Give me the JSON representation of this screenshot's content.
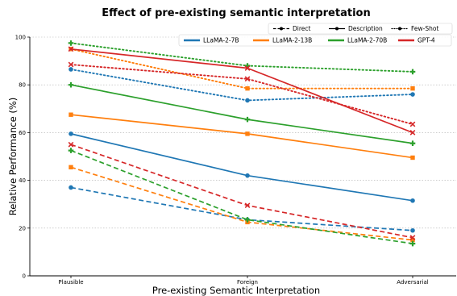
{
  "chart_data": {
    "type": "line",
    "title": "Effect of pre-existing semantic interpretation",
    "xlabel": "Pre-existing Semantic Interpretation",
    "ylabel": "Relative Performance (%)",
    "categories": [
      "Plausible",
      "Foreign",
      "Adversarial"
    ],
    "ylim": [
      0,
      100
    ],
    "yticks": [
      0,
      20,
      40,
      60,
      80,
      100
    ],
    "grid": "horizontal-dotted",
    "legend_style_placement": "top-right",
    "legend_model_placement": "top-right",
    "styles": [
      {
        "key": "direct",
        "label": "Direct",
        "dash": "dashed"
      },
      {
        "key": "description",
        "label": "Description",
        "dash": "solid"
      },
      {
        "key": "fewshot",
        "label": "Few-Shot",
        "dash": "dotted"
      }
    ],
    "models": [
      {
        "key": "llama7",
        "label": "LLaMA-2-7B",
        "color": "#1f77b4",
        "marker": "circle"
      },
      {
        "key": "llama13",
        "label": "LLaMA-2-13B",
        "color": "#ff7f0e",
        "marker": "square"
      },
      {
        "key": "llama70",
        "label": "LLaMA-2-70B",
        "color": "#2ca02c",
        "marker": "plus"
      },
      {
        "key": "gpt4",
        "label": "GPT-4",
        "color": "#d62728",
        "marker": "x"
      }
    ],
    "series": [
      {
        "model": "llama7",
        "style": "direct",
        "values": [
          37,
          23.5,
          19
        ]
      },
      {
        "model": "llama7",
        "style": "description",
        "values": [
          59.5,
          42,
          31.5
        ]
      },
      {
        "model": "llama7",
        "style": "fewshot",
        "values": [
          86.5,
          73.5,
          76
        ]
      },
      {
        "model": "llama13",
        "style": "direct",
        "values": [
          45.5,
          22.5,
          15
        ]
      },
      {
        "model": "llama13",
        "style": "description",
        "values": [
          67.5,
          59.5,
          49.5
        ]
      },
      {
        "model": "llama13",
        "style": "fewshot",
        "values": [
          95,
          78.5,
          78.5
        ]
      },
      {
        "model": "llama70",
        "style": "direct",
        "values": [
          52.5,
          23.5,
          13.5
        ]
      },
      {
        "model": "llama70",
        "style": "description",
        "values": [
          80,
          65.5,
          55.5
        ]
      },
      {
        "model": "llama70",
        "style": "fewshot",
        "values": [
          97.5,
          88,
          85.5
        ]
      },
      {
        "model": "gpt4",
        "style": "direct",
        "values": [
          55,
          29.5,
          16
        ]
      },
      {
        "model": "gpt4",
        "style": "description",
        "values": [
          95,
          87,
          60
        ]
      },
      {
        "model": "gpt4",
        "style": "fewshot",
        "values": [
          88.5,
          82.5,
          63.5
        ]
      }
    ]
  }
}
